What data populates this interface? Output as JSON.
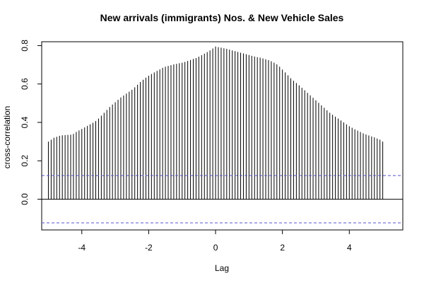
{
  "chart_data": {
    "type": "bar",
    "title": "New arrivals (immigrants) Nos. & New Vehicle Sales",
    "xlabel": "Lag",
    "ylabel": "cross-correlation",
    "xlim": [
      -5.2,
      5.6
    ],
    "ylim": [
      -0.16,
      0.82
    ],
    "x_ticks": [
      -4,
      -2,
      0,
      2,
      4
    ],
    "y_ticks": [
      0.0,
      0.2,
      0.4,
      0.6,
      0.8
    ],
    "x_tick_labels": [
      "-4",
      "-2",
      "0",
      "2",
      "4"
    ],
    "y_tick_labels": [
      "0.0",
      "0.2",
      "0.4",
      "0.6",
      "0.8"
    ],
    "lag_step": 0.0833,
    "lags": [
      -5.0,
      -4.9167,
      -4.8333,
      -4.75,
      -4.6667,
      -4.5833,
      -4.5,
      -4.4167,
      -4.3333,
      -4.25,
      -4.1667,
      -4.0833,
      -4.0,
      -3.9167,
      -3.8333,
      -3.75,
      -3.6667,
      -3.5833,
      -3.5,
      -3.4167,
      -3.3333,
      -3.25,
      -3.1667,
      -3.0833,
      -3.0,
      -2.9167,
      -2.8333,
      -2.75,
      -2.6667,
      -2.5833,
      -2.5,
      -2.4167,
      -2.3333,
      -2.25,
      -2.1667,
      -2.0833,
      -2.0,
      -1.9167,
      -1.8333,
      -1.75,
      -1.6667,
      -1.5833,
      -1.5,
      -1.4167,
      -1.3333,
      -1.25,
      -1.1667,
      -1.0833,
      -1.0,
      -0.9167,
      -0.8333,
      -0.75,
      -0.6667,
      -0.5833,
      -0.5,
      -0.4167,
      -0.3333,
      -0.25,
      -0.1667,
      -0.0833,
      0.0,
      0.0833,
      0.1667,
      0.25,
      0.3333,
      0.4167,
      0.5,
      0.5833,
      0.6667,
      0.75,
      0.8333,
      0.9167,
      1.0,
      1.0833,
      1.1667,
      1.25,
      1.3333,
      1.4167,
      1.5,
      1.5833,
      1.6667,
      1.75,
      1.8333,
      1.9167,
      2.0,
      2.0833,
      2.1667,
      2.25,
      2.3333,
      2.4167,
      2.5,
      2.5833,
      2.6667,
      2.75,
      2.8333,
      2.9167,
      3.0,
      3.0833,
      3.1667,
      3.25,
      3.3333,
      3.4167,
      3.5,
      3.5833,
      3.6667,
      3.75,
      3.8333,
      3.9167,
      4.0,
      4.0833,
      4.1667,
      4.25,
      4.3333,
      4.4167,
      4.5,
      4.5833,
      4.6667,
      4.75,
      4.8333,
      4.9167,
      5.0
    ],
    "values": [
      0.3,
      0.31,
      0.32,
      0.325,
      0.33,
      0.333,
      0.334,
      0.335,
      0.336,
      0.34,
      0.35,
      0.358,
      0.366,
      0.374,
      0.382,
      0.39,
      0.398,
      0.407,
      0.42,
      0.435,
      0.45,
      0.465,
      0.48,
      0.493,
      0.505,
      0.518,
      0.53,
      0.54,
      0.55,
      0.56,
      0.57,
      0.583,
      0.596,
      0.61,
      0.622,
      0.633,
      0.643,
      0.652,
      0.66,
      0.668,
      0.676,
      0.684,
      0.69,
      0.694,
      0.698,
      0.702,
      0.705,
      0.708,
      0.711,
      0.715,
      0.72,
      0.725,
      0.73,
      0.735,
      0.742,
      0.75,
      0.758,
      0.766,
      0.775,
      0.785,
      0.795,
      0.792,
      0.789,
      0.786,
      0.783,
      0.779,
      0.775,
      0.771,
      0.767,
      0.763,
      0.759,
      0.755,
      0.751,
      0.747,
      0.743,
      0.74,
      0.737,
      0.733,
      0.729,
      0.724,
      0.718,
      0.711,
      0.702,
      0.69,
      0.675,
      0.66,
      0.645,
      0.63,
      0.617,
      0.605,
      0.593,
      0.58,
      0.567,
      0.554,
      0.541,
      0.528,
      0.515,
      0.502,
      0.489,
      0.476,
      0.463,
      0.45,
      0.44,
      0.43,
      0.42,
      0.41,
      0.4,
      0.39,
      0.38,
      0.372,
      0.364,
      0.357,
      0.35,
      0.343,
      0.337,
      0.332,
      0.327,
      0.322,
      0.316,
      0.31,
      0.3
    ],
    "confidence_bounds": [
      0.123,
      -0.123
    ],
    "confidence_color": "#5555cc",
    "bar_color": "#000000",
    "grid": false
  }
}
